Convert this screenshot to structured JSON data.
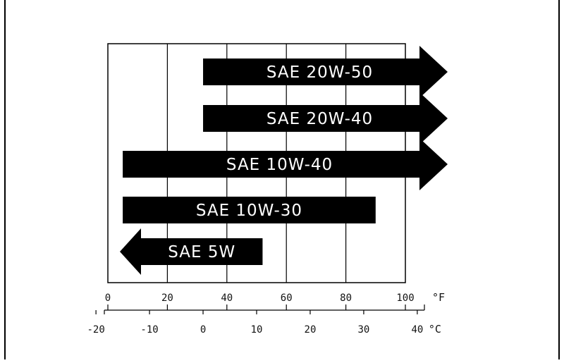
{
  "chart_data": {
    "type": "bar",
    "title": "",
    "orientation": "horizontal-range",
    "bars": [
      {
        "label": "SAE 20W-50",
        "min_f": 32,
        "max_f": 100,
        "open_high": true,
        "open_low": false
      },
      {
        "label": "SAE 20W-40",
        "min_f": 32,
        "max_f": 100,
        "open_high": true,
        "open_low": false
      },
      {
        "label": "SAE 10W-40",
        "min_f": 5,
        "max_f": 100,
        "open_high": true,
        "open_low": false
      },
      {
        "label": "SAE 10W-30",
        "min_f": 5,
        "max_f": 90,
        "open_high": false,
        "open_low": false
      },
      {
        "label": "SAE 5W",
        "min_f": 0,
        "max_f": 52,
        "open_high": false,
        "open_low": true
      }
    ],
    "fahrenheit_axis": {
      "ticks": [
        0,
        20,
        40,
        60,
        80,
        100
      ],
      "tick_labels": [
        "0",
        "20",
        "40",
        "60",
        "80",
        "100"
      ],
      "unit": "°F",
      "range": [
        0,
        100
      ]
    },
    "celsius_axis": {
      "ticks": [
        -20,
        -10,
        0,
        10,
        20,
        30,
        40
      ],
      "tick_labels": [
        "-20",
        "-10",
        "0",
        "10",
        "20",
        "30",
        "40"
      ],
      "unit": "°C"
    },
    "grid": true,
    "colors": {
      "bar": "#000000",
      "bar_text": "#ffffff",
      "grid": "#000000",
      "background": "#ffffff"
    }
  }
}
